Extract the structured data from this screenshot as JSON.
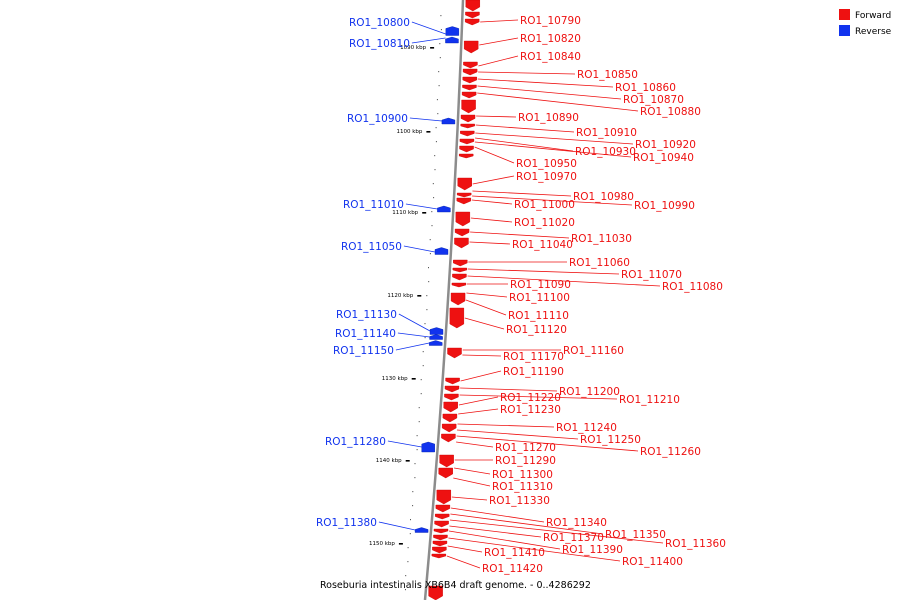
{
  "colors": {
    "forward": "#ee1111",
    "reverse": "#1133ee",
    "axis": "#8c8c8c"
  },
  "legend": [
    {
      "label": "Forward",
      "color": "#ee1111"
    },
    {
      "label": "Reverse",
      "color": "#1133ee"
    }
  ],
  "caption": "Roseburia intestinalis XB6B4 draft genome. - 0..4286292",
  "scale_ticks": [
    "1090 kbp",
    "1100 kbp",
    "1110 kbp",
    "1120 kbp",
    "1130 kbp",
    "1140 kbp",
    "1150 kbp"
  ],
  "reverse_genes": [
    "RO1_10800",
    "RO1_10810",
    "RO1_10900",
    "RO1_11010",
    "RO1_11050",
    "RO1_11130",
    "RO1_11140",
    "RO1_11150",
    "RO1_11280",
    "RO1_11380"
  ],
  "forward_genes": [
    "RO1_10790",
    "RO1_10820",
    "RO1_10840",
    "RO1_10850",
    "RO1_10860",
    "RO1_10870",
    "RO1_10880",
    "RO1_10890",
    "RO1_10910",
    "RO1_10920",
    "RO1_10930",
    "RO1_10940",
    "RO1_10950",
    "RO1_10970",
    "RO1_10980",
    "RO1_10990",
    "RO1_11000",
    "RO1_11020",
    "RO1_11030",
    "RO1_11040",
    "RO1_11060",
    "RO1_11070",
    "RO1_11080",
    "RO1_11090",
    "RO1_11100",
    "RO1_11110",
    "RO1_11120",
    "RO1_11160",
    "RO1_11170",
    "RO1_11190",
    "RO1_11200",
    "RO1_11210",
    "RO1_11220",
    "RO1_11230",
    "RO1_11240",
    "RO1_11250",
    "RO1_11260",
    "RO1_11270",
    "RO1_11290",
    "RO1_11300",
    "RO1_11310",
    "RO1_11330",
    "RO1_11340",
    "RO1_11350",
    "RO1_11360",
    "RO1_11370",
    "RO1_11390",
    "RO1_11400",
    "RO1_11410",
    "RO1_11420"
  ]
}
